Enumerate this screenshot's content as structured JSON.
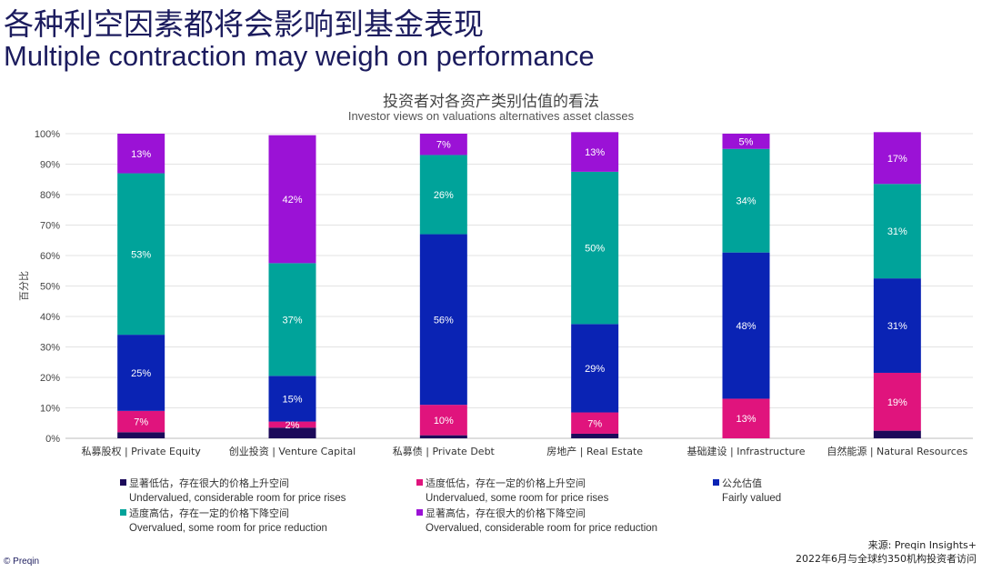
{
  "header": {
    "title_zh": "各种利空因素都将会影响到基金表现",
    "title_en": "Multiple contraction may weigh on performance"
  },
  "colors": {
    "undervalued_considerable": "#1c0a5a",
    "undervalued_some": "#e0147d",
    "fairly_valued": "#0a23b4",
    "overvalued_some": "#00a39a",
    "overvalued_considerable": "#9b12d6"
  },
  "chart_data": {
    "type": "bar",
    "stacked": true,
    "title": "投资者对各资产类别估值的看法",
    "subtitle": "Investor views on valuations alternatives asset classes",
    "ylabel": "百分比",
    "ylim": [
      0,
      100
    ],
    "yticks": [
      "0%",
      "10%",
      "20%",
      "30%",
      "40%",
      "50%",
      "60%",
      "70%",
      "80%",
      "90%",
      "100%"
    ],
    "categories": [
      "私募股权 | Private Equity",
      "创业投资 | Venture Capital",
      "私募债 | Private Debt",
      "房地产 | Real Estate",
      "基础建设 | Infrastructure",
      "自然能源 | Natural Resources"
    ],
    "series": [
      {
        "name": "显著低估，存在很大的价格上升空间",
        "name_en": "Undervalued, considerable room for price rises",
        "color": "#1c0a5a",
        "values": [
          2,
          3.5,
          1,
          1.5,
          0,
          2.5
        ],
        "labels": [
          "",
          "",
          "",
          "",
          "",
          ""
        ]
      },
      {
        "name": "适度低估，存在一定的价格上升空间",
        "name_en": "Undervalued, some room for price rises",
        "color": "#e0147d",
        "values": [
          7,
          2,
          10,
          7,
          13,
          19
        ],
        "labels": [
          "7%",
          "2%",
          "10%",
          "7%",
          "13%",
          "19%"
        ]
      },
      {
        "name": "公允估值",
        "name_en": "Fairly valued",
        "color": "#0a23b4",
        "values": [
          25,
          15,
          56,
          29,
          48,
          31
        ],
        "labels": [
          "25%",
          "15%",
          "56%",
          "29%",
          "48%",
          "31%"
        ]
      },
      {
        "name": "适度高估，存在一定的价格下降空间",
        "name_en": "Overvalued, some room for price reduction",
        "color": "#00a39a",
        "values": [
          53,
          37,
          26,
          50,
          34,
          31
        ],
        "labels": [
          "53%",
          "37%",
          "26%",
          "50%",
          "34%",
          "31%"
        ]
      },
      {
        "name": "显著高估，存在很大的价格下降空间",
        "name_en": "Overvalued, considerable room for price reduction",
        "color": "#9b12d6",
        "values": [
          13,
          42,
          7,
          13,
          5,
          17
        ],
        "labels": [
          "13%",
          "42%",
          "7%",
          "13%",
          "5%",
          "17%"
        ]
      }
    ],
    "legend_position": "bottom",
    "grid": true
  },
  "source": {
    "line1": "来源: Preqin Insights+",
    "line2": "2022年6月与全球约350机构投资者访问"
  },
  "brand": "© Preqin"
}
